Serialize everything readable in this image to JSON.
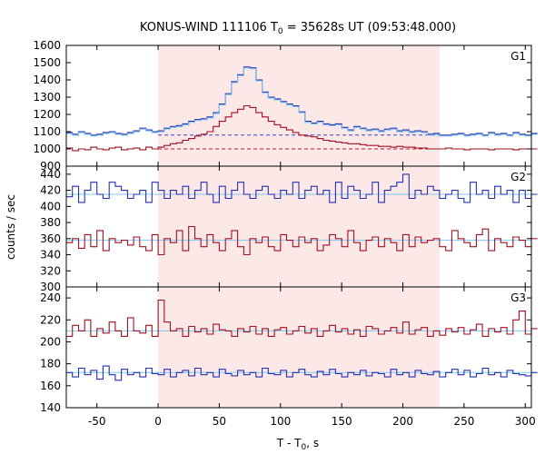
{
  "chart_data": {
    "type": "line",
    "title": "KONUS-WIND 111106 T",
    "title_sub": "0",
    "title_rest": " = 35628s UT (09:53:48.000)",
    "xlabel": "T - T",
    "xlabel_sub": "0",
    "xlabel_rest": ", s",
    "ylabel": "counts / sec",
    "xlim": [
      -75,
      305
    ],
    "x_ticks": [
      -50,
      0,
      50,
      100,
      150,
      200,
      250,
      300
    ],
    "shaded_interval": [
      0,
      230
    ],
    "shade_color": "#fde8e8",
    "colors": {
      "blue": "#2330b0",
      "red": "#a01020",
      "fit": "#7ec8f0",
      "dashed_blue": "#3a44c0",
      "dashed_red": "#b01828"
    },
    "panels": [
      {
        "name": "G1",
        "ylim": [
          900,
          1600
        ],
        "y_ticks": [
          900,
          1000,
          1100,
          1200,
          1300,
          1400,
          1500,
          1600
        ],
        "series": [
          {
            "x": [
              -75,
              -70,
              -65,
              -60,
              -55,
              -50,
              -45,
              -40,
              -35,
              -30,
              -25,
              -20,
              -15,
              -10,
              -5,
              0,
              5,
              10,
              15,
              20,
              25,
              30,
              35,
              40,
              45,
              50,
              55,
              60,
              65,
              70,
              75,
              80,
              85,
              90,
              95,
              100,
              105,
              110,
              115,
              120,
              125,
              130,
              135,
              140,
              145,
              150,
              155,
              160,
              165,
              170,
              175,
              180,
              185,
              190,
              195,
              200,
              205,
              210,
              215,
              220,
              225,
              230,
              235,
              240,
              245,
              250,
              255,
              260,
              265,
              270,
              275,
              280,
              285,
              290,
              295,
              300,
              305
            ],
            "values": [
              1095,
              1085,
              1100,
              1090,
              1080,
              1085,
              1095,
              1100,
              1090,
              1085,
              1095,
              1105,
              1120,
              1110,
              1100,
              1105,
              1120,
              1130,
              1135,
              1145,
              1160,
              1170,
              1175,
              1185,
              1210,
              1260,
              1320,
              1390,
              1430,
              1475,
              1470,
              1400,
              1330,
              1300,
              1290,
              1275,
              1260,
              1250,
              1215,
              1160,
              1150,
              1160,
              1145,
              1140,
              1145,
              1125,
              1110,
              1130,
              1120,
              1110,
              1115,
              1105,
              1115,
              1120,
              1105,
              1110,
              1100,
              1105,
              1100,
              1085,
              1090,
              1080,
              1080,
              1085,
              1090,
              1080,
              1085,
              1090,
              1080,
              1095,
              1085,
              1090,
              1080,
              1095,
              1085,
              1080,
              1090
            ]
          },
          {
            "x": [
              -75,
              -70,
              -65,
              -60,
              -55,
              -50,
              -45,
              -40,
              -35,
              -30,
              -25,
              -20,
              -15,
              -10,
              -5,
              0,
              5,
              10,
              15,
              20,
              25,
              30,
              35,
              40,
              45,
              50,
              55,
              60,
              65,
              70,
              75,
              80,
              85,
              90,
              95,
              100,
              105,
              110,
              115,
              120,
              125,
              130,
              135,
              140,
              145,
              150,
              155,
              160,
              165,
              170,
              175,
              180,
              185,
              190,
              195,
              200,
              205,
              210,
              215,
              220,
              225,
              230,
              235,
              240,
              245,
              250,
              255,
              260,
              265,
              270,
              275,
              280,
              285,
              290,
              295,
              300,
              305
            ],
            "values": [
              1005,
              990,
              1000,
              995,
              1010,
              1000,
              995,
              1005,
              1010,
              995,
              1000,
              1005,
              995,
              1010,
              1000,
              1010,
              1020,
              1030,
              1035,
              1050,
              1060,
              1075,
              1085,
              1100,
              1130,
              1160,
              1185,
              1210,
              1230,
              1250,
              1240,
              1210,
              1185,
              1160,
              1140,
              1125,
              1110,
              1095,
              1080,
              1075,
              1070,
              1060,
              1050,
              1045,
              1040,
              1035,
              1030,
              1030,
              1025,
              1020,
              1020,
              1015,
              1015,
              1010,
              1015,
              1010,
              1010,
              1005,
              1005,
              1000,
              1000,
              1000,
              1005,
              1000,
              1000,
              995,
              1000,
              1000,
              1000,
              995,
              1000,
              1000,
              1000,
              995,
              1000,
              1000,
              1000
            ]
          }
        ],
        "baselines": [
          1080,
          1000
        ]
      },
      {
        "name": "G2",
        "ylim": [
          300,
          450
        ],
        "y_ticks": [
          300,
          320,
          340,
          360,
          380,
          400,
          420,
          440
        ],
        "series": [
          {
            "x": [
              -75,
              -70,
              -65,
              -60,
              -55,
              -50,
              -45,
              -40,
              -35,
              -30,
              -25,
              -20,
              -15,
              -10,
              -5,
              0,
              5,
              10,
              15,
              20,
              25,
              30,
              35,
              40,
              45,
              50,
              55,
              60,
              65,
              70,
              75,
              80,
              85,
              90,
              95,
              100,
              105,
              110,
              115,
              120,
              125,
              130,
              135,
              140,
              145,
              150,
              155,
              160,
              165,
              170,
              175,
              180,
              185,
              190,
              195,
              200,
              205,
              210,
              215,
              220,
              225,
              230,
              235,
              240,
              245,
              250,
              255,
              260,
              265,
              270,
              275,
              280,
              285,
              290,
              295,
              300,
              305
            ],
            "values": [
              412,
              425,
              405,
              420,
              430,
              415,
              410,
              430,
              425,
              420,
              410,
              415,
              420,
              405,
              430,
              420,
              410,
              420,
              415,
              425,
              410,
              420,
              430,
              415,
              405,
              425,
              410,
              420,
              430,
              415,
              410,
              420,
              425,
              415,
              410,
              420,
              415,
              430,
              410,
              420,
              425,
              415,
              420,
              405,
              430,
              410,
              425,
              420,
              410,
              415,
              430,
              405,
              420,
              425,
              430,
              440,
              410,
              420,
              415,
              425,
              420,
              410,
              415,
              420,
              410,
              405,
              430,
              415,
              420,
              410,
              425,
              415,
              420,
              405,
              420,
              410,
              415
            ]
          },
          {
            "x": [
              -75,
              -70,
              -65,
              -60,
              -55,
              -50,
              -45,
              -40,
              -35,
              -30,
              -25,
              -20,
              -15,
              -10,
              -5,
              0,
              5,
              10,
              15,
              20,
              25,
              30,
              35,
              40,
              45,
              50,
              55,
              60,
              65,
              70,
              75,
              80,
              85,
              90,
              95,
              100,
              105,
              110,
              115,
              120,
              125,
              130,
              135,
              140,
              145,
              150,
              155,
              160,
              165,
              170,
              175,
              180,
              185,
              190,
              195,
              200,
              205,
              210,
              215,
              220,
              225,
              230,
              235,
              240,
              245,
              250,
              255,
              260,
              265,
              270,
              275,
              280,
              285,
              290,
              295,
              300,
              305
            ],
            "values": [
              355,
              360,
              348,
              365,
              350,
              370,
              345,
              360,
              355,
              358,
              352,
              362,
              350,
              345,
              365,
              340,
              360,
              355,
              370,
              345,
              375,
              360,
              350,
              365,
              355,
              345,
              360,
              370,
              350,
              340,
              360,
              355,
              362,
              350,
              345,
              365,
              358,
              350,
              362,
              355,
              360,
              345,
              352,
              365,
              360,
              350,
              370,
              355,
              345,
              358,
              362,
              350,
              360,
              355,
              345,
              365,
              350,
              362,
              355,
              358,
              360,
              350,
              345,
              370,
              360,
              355,
              350,
              365,
              372,
              345,
              360,
              355,
              350,
              362,
              358,
              350,
              360
            ]
          }
        ],
        "fits": [
          415,
          358
        ]
      },
      {
        "name": "G3",
        "ylim": [
          140,
          250
        ],
        "y_ticks": [
          140,
          160,
          180,
          200,
          220,
          240
        ],
        "series": [
          {
            "x": [
              -75,
              -70,
              -65,
              -60,
              -55,
              -50,
              -45,
              -40,
              -35,
              -30,
              -25,
              -20,
              -15,
              -10,
              -5,
              0,
              5,
              10,
              15,
              20,
              25,
              30,
              35,
              40,
              45,
              50,
              55,
              60,
              65,
              70,
              75,
              80,
              85,
              90,
              95,
              100,
              105,
              110,
              115,
              120,
              125,
              130,
              135,
              140,
              145,
              150,
              155,
              160,
              165,
              170,
              175,
              180,
              185,
              190,
              195,
              200,
              205,
              210,
              215,
              220,
              225,
              230,
              235,
              240,
              245,
              250,
              255,
              260,
              265,
              270,
              275,
              280,
              285,
              290,
              295,
              300,
              305
            ],
            "values": [
              205,
              215,
              210,
              220,
              205,
              212,
              208,
              218,
              210,
              205,
              222,
              210,
              208,
              215,
              205,
              238,
              218,
              210,
              212,
              205,
              214,
              209,
              212,
              207,
              216,
              211,
              210,
              205,
              212,
              209,
              214,
              207,
              212,
              205,
              211,
              213,
              207,
              210,
              214,
              208,
              212,
              205,
              210,
              215,
              209,
              212,
              207,
              211,
              205,
              214,
              212,
              207,
              210,
              213,
              208,
              218,
              207,
              211,
              213,
              205,
              210,
              206,
              212,
              209,
              213,
              207,
              211,
              216,
              205,
              212,
              209,
              213,
              207,
              220,
              228,
              207,
              212
            ]
          },
          {
            "x": [
              -75,
              -70,
              -65,
              -60,
              -55,
              -50,
              -45,
              -40,
              -35,
              -30,
              -25,
              -20,
              -15,
              -10,
              -5,
              0,
              5,
              10,
              15,
              20,
              25,
              30,
              35,
              40,
              45,
              50,
              55,
              60,
              65,
              70,
              75,
              80,
              85,
              90,
              95,
              100,
              105,
              110,
              115,
              120,
              125,
              130,
              135,
              140,
              145,
              150,
              155,
              160,
              165,
              170,
              175,
              180,
              185,
              190,
              195,
              200,
              205,
              210,
              215,
              220,
              225,
              230,
              235,
              240,
              245,
              250,
              255,
              260,
              265,
              270,
              275,
              280,
              285,
              290,
              295,
              300,
              305
            ],
            "values": [
              172,
              168,
              176,
              170,
              174,
              166,
              178,
              170,
              165,
              175,
              170,
              172,
              168,
              176,
              171,
              170,
              175,
              168,
              172,
              174,
              169,
              176,
              170,
              172,
              168,
              175,
              171,
              169,
              174,
              170,
              172,
              168,
              176,
              171,
              170,
              174,
              168,
              172,
              175,
              170,
              168,
              173,
              170,
              175,
              171,
              168,
              172,
              170,
              174,
              169,
              172,
              171,
              168,
              175,
              170,
              172,
              168,
              174,
              171,
              170,
              173,
              168,
              172,
              175,
              170,
              174,
              168,
              171,
              176,
              170,
              172,
              168,
              174,
              171,
              170,
              169,
              172
            ]
          }
        ],
        "fits": [
          210,
          172
        ]
      }
    ]
  }
}
